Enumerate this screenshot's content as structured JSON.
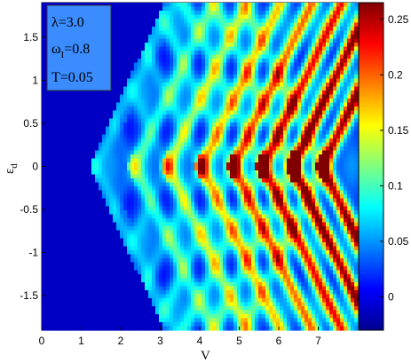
{
  "chart_data": {
    "type": "heatmap",
    "title": "",
    "xlabel": "V",
    "ylabel": "ε_d",
    "xlim": [
      0,
      8
    ],
    "ylim": [
      -1.9,
      1.9
    ],
    "x_ticks": [
      "0",
      "1",
      "2",
      "3",
      "4",
      "5",
      "6",
      "7"
    ],
    "y_ticks": [
      "-1.5",
      "-1",
      "-0.5",
      "0",
      "0.5",
      "1",
      "1.5"
    ],
    "colorbar": {
      "range": [
        -0.03,
        0.265
      ],
      "ticks": [
        "0",
        "0.05",
        "0.1",
        "0.15",
        "0.2",
        "0.25"
      ],
      "colormap": "jet"
    },
    "annotation": {
      "lambda": "λ=3.0",
      "omega_symbol": "ω",
      "omega_sub": "I",
      "omega_val": "=0.8",
      "temperature": "T=0.05"
    },
    "features": {
      "background_value": -0.01,
      "resonance_lines": "peaks along ε_d = ±(V/2 - n·λ_step) forming a diamond lattice that opens to the right",
      "diamond_tip_V": 1.35
    }
  }
}
